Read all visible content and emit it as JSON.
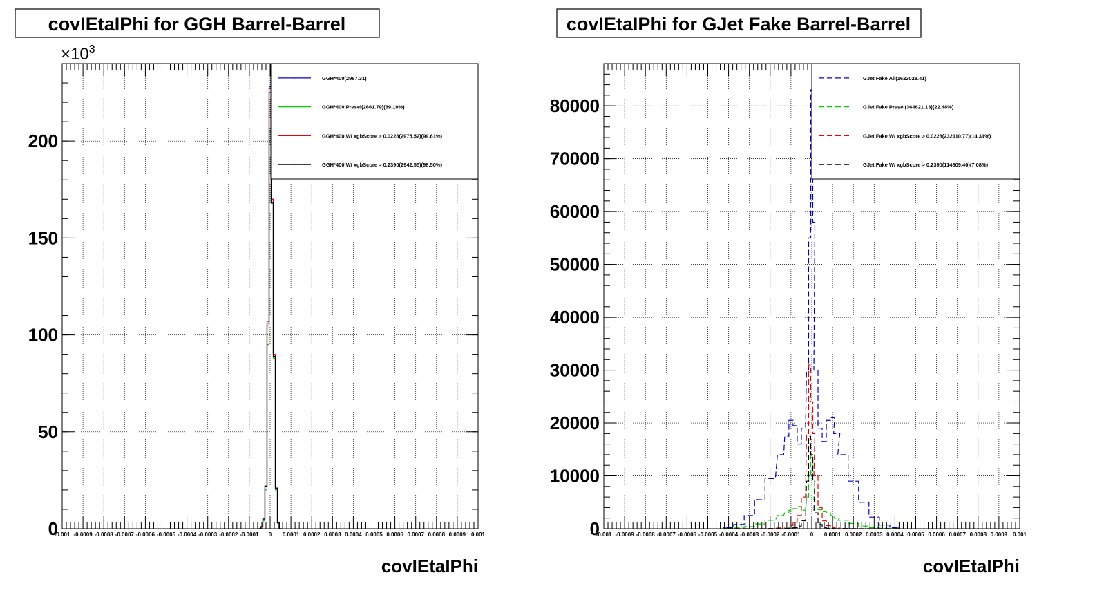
{
  "colors": {
    "blue": "#0000cc",
    "green": "#00cc00",
    "red": "#ee0000",
    "black": "#000000"
  },
  "chart_data": [
    {
      "type": "line",
      "title": "covIEtaIPhi for GGH Barrel-Barrel",
      "xlabel": "covIEtaIPhi",
      "ylabel": "",
      "y_multiplier": "×10",
      "y_multiplier_exp": "3",
      "xlim": [
        -0.001,
        0.001
      ],
      "ylim": [
        0,
        240
      ],
      "x_ticks": [
        -0.001,
        -0.0009,
        -0.0008,
        -0.0007,
        -0.0006,
        -0.0005,
        -0.0004,
        -0.0003,
        -0.0002,
        -0.0001,
        0,
        0.0001,
        0.0002,
        0.0003,
        0.0004,
        0.0005,
        0.0006,
        0.0007,
        0.0008,
        0.0009,
        0.001
      ],
      "x_tick_labels": [
        "-0.001",
        "-0.0009",
        "-0.0008",
        "-0.0007",
        "-0.0006",
        "-0.0005",
        "-0.0004",
        "-0.0003",
        "-0.0002",
        "-0.0001",
        "0",
        "0.0001",
        "0.0002",
        "0.0003",
        "0.0004",
        "0.0005",
        "0.0006",
        "0.0007",
        "0.0008",
        "0.0009",
        "0.001"
      ],
      "y_ticks": [
        0,
        50,
        100,
        150,
        200
      ],
      "y_tick_labels": [
        "0",
        "50",
        "100",
        "150",
        "200"
      ],
      "grid": true,
      "legend_position": "top-right",
      "x": [
        -5e-05,
        -4e-05,
        -3e-05,
        -2e-05,
        -1e-05,
        0,
        1e-05,
        2e-05,
        3e-05,
        4e-05,
        5e-05
      ],
      "series": [
        {
          "name": "GGH*400(2987.31)",
          "color": "#0000cc",
          "dash": "solid",
          "values": [
            0,
            1,
            5,
            22,
            107,
            228,
            170,
            90,
            21,
            3,
            0
          ]
        },
        {
          "name": "GGH*400 Presel(2661.79)(89.10%)",
          "color": "#00cc00",
          "dash": "solid",
          "values": [
            0,
            1,
            4,
            20,
            95,
            205,
            168,
            88,
            20,
            3,
            0
          ]
        },
        {
          "name": "GGH*400 W/ xgbScore > 0.0228(2975.52)(99.61%)",
          "color": "#ee0000",
          "dash": "solid",
          "values": [
            0,
            1,
            5,
            22,
            106,
            227,
            170,
            90,
            21,
            3,
            0
          ]
        },
        {
          "name": "GGH*400 W/ xgbScore > 0.2390(2942.55)(98.50%)",
          "color": "#000000",
          "dash": "solid",
          "values": [
            0,
            1,
            5,
            22,
            105,
            225,
            168,
            89,
            21,
            3,
            0
          ]
        }
      ]
    },
    {
      "type": "line",
      "title": "covIEtaIPhi for GJet Fake Barrel-Barrel",
      "xlabel": "covIEtaIPhi",
      "ylabel": "",
      "xlim": [
        -0.001,
        0.001
      ],
      "ylim": [
        0,
        88000
      ],
      "x_ticks": [
        -0.001,
        -0.0009,
        -0.0008,
        -0.0007,
        -0.0006,
        -0.0005,
        -0.0004,
        -0.0003,
        -0.0002,
        -0.0001,
        0,
        0.0001,
        0.0002,
        0.0003,
        0.0004,
        0.0005,
        0.0006,
        0.0007,
        0.0008,
        0.0009,
        0.001
      ],
      "x_tick_labels": [
        "-0.001",
        "-0.0009",
        "-0.0008",
        "-0.0007",
        "-0.0006",
        "-0.0005",
        "-0.0004",
        "-0.0003",
        "-0.0002",
        "-0.0001",
        "0",
        "0.0001",
        "0.0002",
        "0.0003",
        "0.0004",
        "0.0005",
        "0.0006",
        "0.0007",
        "0.0008",
        "0.0009",
        "0.001"
      ],
      "y_ticks": [
        0,
        10000,
        20000,
        30000,
        40000,
        50000,
        60000,
        70000,
        80000
      ],
      "y_tick_labels": [
        "0",
        "10000",
        "20000",
        "30000",
        "40000",
        "50000",
        "60000",
        "70000",
        "80000"
      ],
      "grid": true,
      "legend_position": "top-right",
      "x": [
        -0.0004,
        -0.00035,
        -0.0003,
        -0.00025,
        -0.0002,
        -0.00015,
        -0.00012,
        -0.0001,
        -8e-05,
        -6e-05,
        -4e-05,
        -2e-05,
        -1e-05,
        0,
        1e-05,
        2e-05,
        4e-05,
        6e-05,
        8e-05,
        0.0001,
        0.00012,
        0.00015,
        0.0002,
        0.00025,
        0.0003,
        0.00035,
        0.0004
      ],
      "series": [
        {
          "name": "GJet Fake All(1622028.41)",
          "color": "#0000cc",
          "dash": "dashed",
          "values": [
            200,
            800,
            2500,
            5500,
            9500,
            14000,
            17500,
            20500,
            19500,
            16000,
            19000,
            30000,
            55000,
            83000,
            58000,
            30000,
            19000,
            16500,
            20500,
            21000,
            18000,
            14000,
            9000,
            5000,
            2200,
            700,
            200
          ]
        },
        {
          "name": "GJet Fake Presel(364621.13)(22.48%)",
          "color": "#00cc00",
          "dash": "dashed",
          "values": [
            50,
            150,
            400,
            900,
            1600,
            2500,
            3000,
            3500,
            3800,
            4200,
            3500,
            6000,
            10000,
            14000,
            9500,
            5500,
            3600,
            3200,
            3000,
            2500,
            2000,
            1600,
            1000,
            500,
            200,
            80,
            30
          ]
        },
        {
          "name": "GJet Fake W/ xgbScore > 0.0228(232110.77)(14.31%)",
          "color": "#ee0000",
          "dash": "dashed",
          "values": [
            0,
            0,
            0,
            0,
            50,
            150,
            300,
            600,
            1200,
            2500,
            6000,
            18000,
            31000,
            24000,
            18000,
            10000,
            4000,
            1500,
            600,
            300,
            150,
            60,
            20,
            0,
            0,
            0,
            0
          ]
        },
        {
          "name": "GJet Fake W/ xgbScore > 0.2390(114809.40)(7.08%)",
          "color": "#000000",
          "dash": "dashed",
          "values": [
            0,
            0,
            0,
            0,
            0,
            0,
            50,
            100,
            200,
            500,
            1500,
            9000,
            17500,
            14000,
            9000,
            3000,
            800,
            200,
            80,
            30,
            10,
            0,
            0,
            0,
            0,
            0,
            0
          ]
        }
      ]
    }
  ]
}
